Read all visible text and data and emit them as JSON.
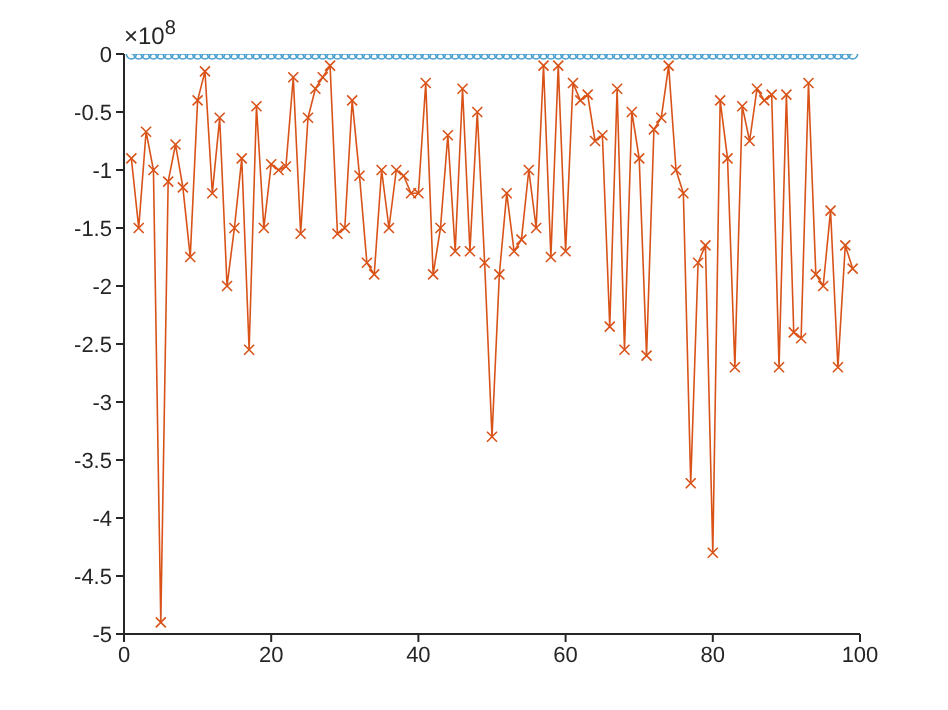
{
  "chart_data": {
    "type": "line",
    "x": [
      1,
      2,
      3,
      4,
      5,
      6,
      7,
      8,
      9,
      10,
      11,
      12,
      13,
      14,
      15,
      16,
      17,
      18,
      19,
      20,
      21,
      22,
      23,
      24,
      25,
      26,
      27,
      28,
      29,
      30,
      31,
      32,
      33,
      34,
      35,
      36,
      37,
      38,
      39,
      40,
      41,
      42,
      43,
      44,
      45,
      46,
      47,
      48,
      49,
      50,
      51,
      52,
      53,
      54,
      55,
      56,
      57,
      58,
      59,
      60,
      61,
      62,
      63,
      64,
      65,
      66,
      67,
      68,
      69,
      70,
      71,
      72,
      73,
      74,
      75,
      76,
      77,
      78,
      79,
      80,
      81,
      82,
      83,
      84,
      85,
      86,
      87,
      88,
      89,
      90,
      91,
      92,
      93,
      94,
      95,
      96,
      97,
      98,
      99
    ],
    "series": [
      {
        "color": "#4a9fd0",
        "marker": "circle",
        "values": [
          0,
          0,
          0,
          0,
          0,
          0,
          0,
          0,
          0,
          0,
          0,
          0,
          0,
          0,
          0,
          0,
          0,
          0,
          0,
          0,
          0,
          0,
          0,
          0,
          0,
          0,
          0,
          0,
          0,
          0,
          0,
          0,
          0,
          0,
          0,
          0,
          0,
          0,
          0,
          0,
          0,
          0,
          0,
          0,
          0,
          0,
          0,
          0,
          0,
          0,
          0,
          0,
          0,
          0,
          0,
          0,
          0,
          0,
          0,
          0,
          0,
          0,
          0,
          0,
          0,
          0,
          0,
          0,
          0,
          0,
          0,
          0,
          0,
          0,
          0,
          0,
          0,
          0,
          0,
          0,
          0,
          0,
          0,
          0,
          0,
          0,
          0,
          0,
          0,
          0,
          0,
          0,
          0,
          0,
          0,
          0,
          0,
          0,
          0
        ]
      },
      {
        "color": "#d95319",
        "marker": "cross",
        "values": [
          -0.9,
          -1.5,
          -0.67,
          -1.0,
          -4.9,
          -1.1,
          -0.78,
          -1.15,
          -1.75,
          -0.4,
          -0.15,
          -1.2,
          -0.55,
          -2.0,
          -1.5,
          -0.9,
          -2.55,
          -0.45,
          -1.5,
          -0.95,
          -1.0,
          -0.97,
          -0.2,
          -1.55,
          -0.55,
          -0.3,
          -0.2,
          -0.1,
          -1.55,
          -1.5,
          -0.4,
          -1.05,
          -1.8,
          -1.9,
          -1.0,
          -1.5,
          -1.0,
          -1.05,
          -1.2,
          -1.2,
          -0.25,
          -1.9,
          -1.5,
          -0.7,
          -1.7,
          -0.3,
          -1.7,
          -0.5,
          -1.8,
          -3.3,
          -1.9,
          -1.2,
          -1.7,
          -1.6,
          -1.0,
          -1.5,
          -0.1,
          -1.75,
          -0.1,
          -1.7,
          -0.25,
          -0.4,
          -0.35,
          -0.75,
          -0.7,
          -2.35,
          -0.3,
          -2.55,
          -0.5,
          -0.9,
          -2.6,
          -0.65,
          -0.55,
          -0.1,
          -1.0,
          -1.2,
          -3.7,
          -1.8,
          -1.65,
          -4.3,
          -0.4,
          -0.9,
          -2.7,
          -0.45,
          -0.75,
          -0.3,
          -0.4,
          -0.35,
          -2.7,
          -0.35,
          -2.4,
          -2.45,
          -0.25,
          -1.9,
          -2.0,
          -1.35,
          -2.7,
          -1.65,
          -1.85
        ]
      }
    ],
    "xlim": [
      0,
      100
    ],
    "xticks": [
      0,
      20,
      40,
      60,
      80,
      100
    ],
    "ylim": [
      -5,
      0
    ],
    "yticks": [
      -5,
      -4.5,
      -4,
      -3.5,
      -3,
      -2.5,
      -2,
      -1.5,
      -1,
      -0.5,
      0
    ],
    "annotations": [
      "×10$^{8}$"
    ],
    "grid": false,
    "legend": false,
    "line_style": "solid"
  }
}
